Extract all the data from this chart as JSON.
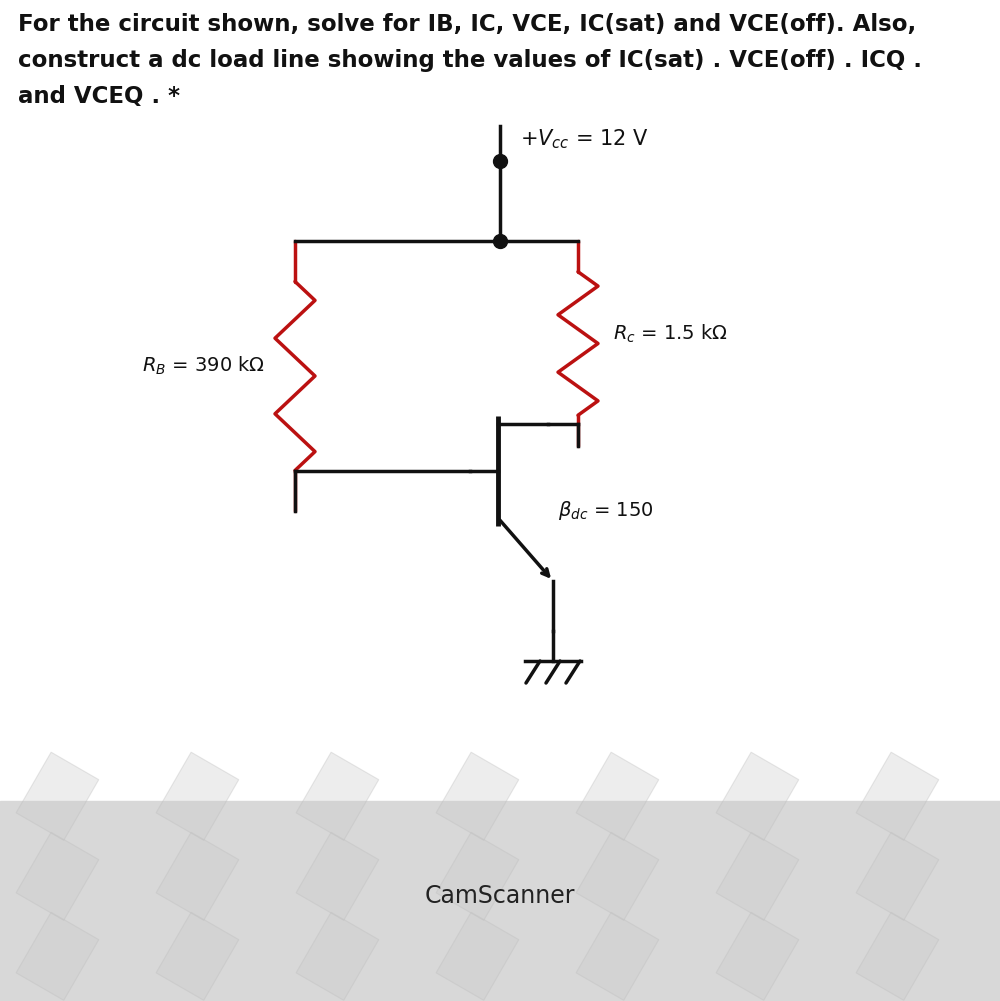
{
  "title_line1": "For the circuit shown, solve for IB, IC, VCE, IC(sat) and VCE(off). Also,",
  "title_line2": "construct a dc load line showing the values of IC(sat) . VCE(off) . ICQ .",
  "title_line3": "and VCEQ . *",
  "camscanner_text": "CamScanner",
  "bg_color": "#ffffff",
  "bg_bottom_color": "#e0e0e0",
  "circuit_color": "#111111",
  "resistor_color": "#bb1111",
  "text_color": "#111111",
  "title_fontsize": 16.5,
  "label_fontsize": 14
}
